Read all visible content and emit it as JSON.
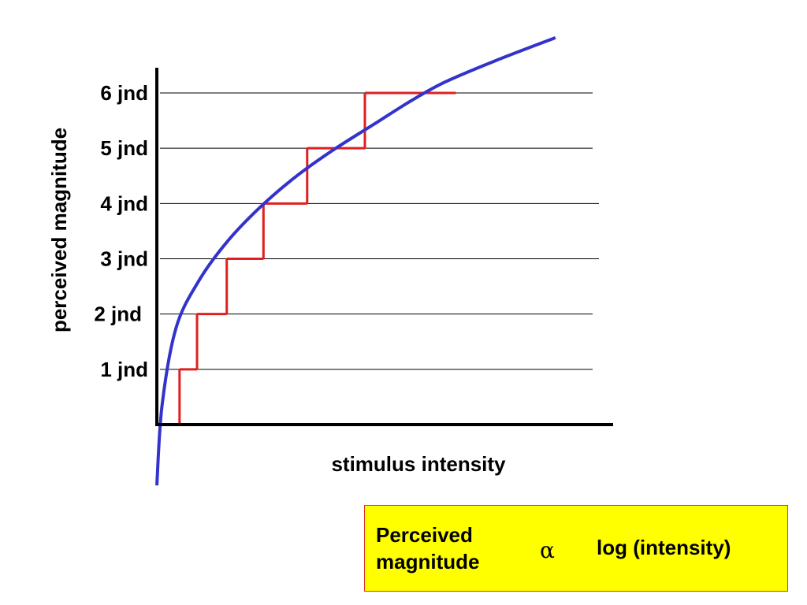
{
  "chart_data": {
    "type": "line",
    "xlabel": "stimulus intensity",
    "ylabel": "perceived magnitude",
    "y_ticks": [
      {
        "value": 1,
        "label": "1 jnd"
      },
      {
        "value": 2,
        "label": "2 jnd"
      },
      {
        "value": 3,
        "label": "3 jnd"
      },
      {
        "value": 4,
        "label": "4 jnd"
      },
      {
        "value": 5,
        "label": "5 jnd"
      },
      {
        "value": 6,
        "label": "6 jnd"
      }
    ],
    "grid": true,
    "curve": {
      "shape": "logarithmic",
      "color": "#3333cc",
      "points": [
        [
          0.0,
          -1.1
        ],
        [
          0.3,
          0.35
        ],
        [
          1.1,
          1.75
        ],
        [
          2.4,
          2.6
        ],
        [
          4.0,
          3.3
        ],
        [
          5.8,
          3.9
        ],
        [
          7.8,
          4.45
        ],
        [
          10.0,
          4.95
        ],
        [
          12.5,
          5.45
        ],
        [
          14.5,
          5.85
        ],
        [
          16.5,
          6.2
        ],
        [
          19.5,
          6.6
        ],
        [
          22.8,
          7.0
        ]
      ]
    },
    "staircase": {
      "color": "#e02020",
      "steps": [
        [
          1.3,
          0
        ],
        [
          2.3,
          1
        ],
        [
          4.0,
          2
        ],
        [
          6.1,
          3
        ],
        [
          8.6,
          4
        ],
        [
          11.9,
          5
        ],
        [
          17.1,
          6
        ]
      ]
    },
    "xlim": [
      0,
      26.1
    ],
    "ylim": [
      0,
      6.0
    ]
  },
  "formula": {
    "left": "Perceived magnitude",
    "symbol": "α",
    "right": "log (intensity)"
  }
}
